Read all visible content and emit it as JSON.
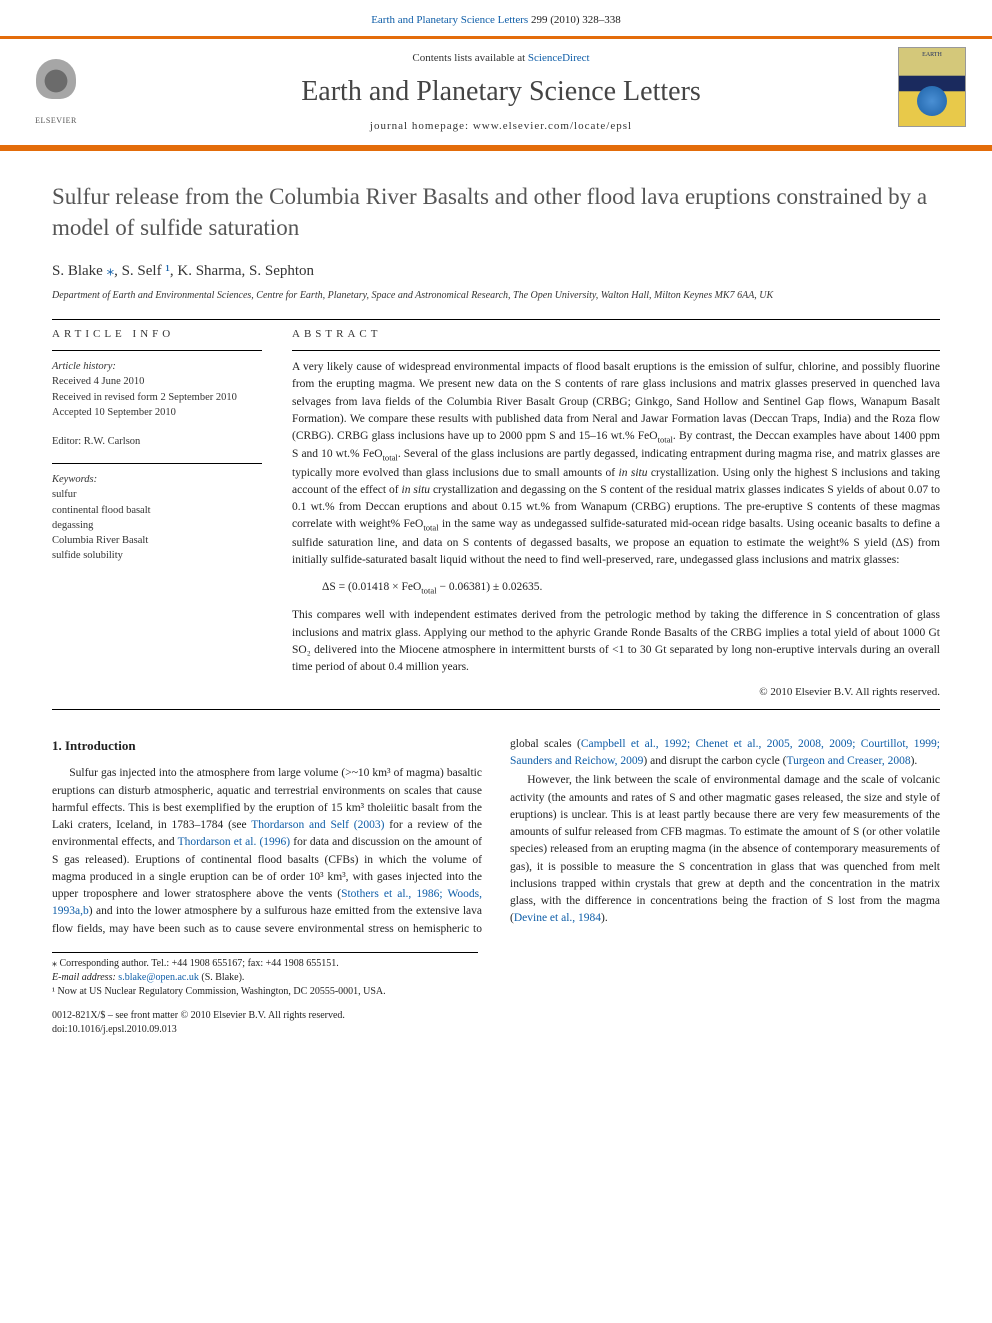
{
  "top_link": {
    "prefix": "",
    "journal": "Earth and Planetary Science Letters",
    "citation": " 299 (2010) 328–338"
  },
  "header": {
    "elsevier_label": "ELSEVIER",
    "contents_prefix": "Contents lists available at ",
    "contents_link": "ScienceDirect",
    "journal_title": "Earth and Planetary Science Letters",
    "homepage_prefix": "journal homepage: ",
    "homepage_url": "www.elsevier.com/locate/epsl",
    "cover_label": "EARTH"
  },
  "article": {
    "title": "Sulfur release from the Columbia River Basalts and other flood lava eruptions constrained by a model of sulfide saturation",
    "authors_html": "S. Blake ⁎, S. Self ¹, K. Sharma, S. Sephton",
    "affiliation": "Department of Earth and Environmental Sciences, Centre for Earth, Planetary, Space and Astronomical Research, The Open University, Walton Hall, Milton Keynes MK7 6AA, UK"
  },
  "info": {
    "head": "article info",
    "history_label": "Article history:",
    "received": "Received 4 June 2010",
    "revised": "Received in revised form 2 September 2010",
    "accepted": "Accepted 10 September 2010",
    "editor": "Editor: R.W. Carlson",
    "keywords_label": "Keywords:",
    "keywords": [
      "sulfur",
      "continental flood basalt",
      "degassing",
      "Columbia River Basalt",
      "sulfide solubility"
    ]
  },
  "abstract": {
    "head": "abstract",
    "p1": "A very likely cause of widespread environmental impacts of flood basalt eruptions is the emission of sulfur, chlorine, and possibly fluorine from the erupting magma. We present new data on the S contents of rare glass inclusions and matrix glasses preserved in quenched lava selvages from lava fields of the Columbia River Basalt Group (CRBG; Ginkgo, Sand Hollow and Sentinel Gap flows, Wanapum Basalt Formation). We compare these results with published data from Neral and Jawar Formation lavas (Deccan Traps, India) and the Roza flow (CRBG). CRBG glass inclusions have up to 2000 ppm S and 15–16 wt.% FeOtotal. By contrast, the Deccan examples have about 1400 ppm S and 10 wt.% FeOtotal. Several of the glass inclusions are partly degassed, indicating entrapment during magma rise, and matrix glasses are typically more evolved than glass inclusions due to small amounts of in situ crystallization. Using only the highest S inclusions and taking account of the effect of in situ crystallization and degassing on the S content of the residual matrix glasses indicates S yields of about 0.07 to 0.1 wt.% from Deccan eruptions and about 0.15 wt.% from Wanapum (CRBG) eruptions. The pre-eruptive S contents of these magmas correlate with weight% FeOtotal in the same way as undegassed sulfide-saturated mid-ocean ridge basalts. Using oceanic basalts to define a sulfide saturation line, and data on S contents of degassed basalts, we propose an equation to estimate the weight% S yield (ΔS) from initially sulfide-saturated basalt liquid without the need to find well-preserved, rare, undegassed glass inclusions and matrix glasses:",
    "equation": "ΔS = (0.01418 × FeOtotal − 0.06381) ± 0.02635.",
    "p2": "This compares well with independent estimates derived from the petrologic method by taking the difference in S concentration of glass inclusions and matrix glass. Applying our method to the aphyric Grande Ronde Basalts of the CRBG implies a total yield of about 1000 Gt SO₂ delivered into the Miocene atmosphere in intermittent bursts of <1 to 30 Gt separated by long non-eruptive intervals during an overall time period of about 0.4 million years.",
    "copyright": "© 2010 Elsevier B.V. All rights reserved."
  },
  "section1": {
    "heading": "1. Introduction",
    "para1_pre": "Sulfur gas injected into the atmosphere from large volume (>~10 km³ of magma) basaltic eruptions can disturb atmospheric, aquatic and terrestrial environments on scales that cause harmful effects. This is best exemplified by the eruption of 15 km³ tholeiitic basalt from the Laki craters, Iceland, in 1783–1784 (see ",
    "cite1": "Thordarson and Self (2003)",
    "para1_mid1": " for a review of the environmental effects, and ",
    "cite2": "Thordarson et al. (1996)",
    "para1_mid2": " for data and discussion on the amount of S gas released). Eruptions of continental flood basalts (CFBs) in which the volume of magma produced in a single eruption can be of order 10³ km³, with gases injected into the upper troposphere and lower stratosphere above the vents (",
    "cite3": "Stothers et al., 1986; Woods, 1993a,b",
    "para1_mid3": ") and into the lower atmosphere by a sulfurous haze emitted from the extensive lava flow fields, may have been such as to cause severe environmental stress on hemispheric to global scales (",
    "cite4": "Campbell et al., 1992; Chenet et al., 2005, 2008, 2009; Courtillot, 1999; Saunders and Reichow, 2009",
    "para1_mid4": ") and disrupt the carbon cycle (",
    "cite5": "Turgeon and Creaser, 2008",
    "para1_end": ").",
    "para2_pre": "However, the link between the scale of environmental damage and the scale of volcanic activity (the amounts and rates of S and other magmatic gases released, the size and style of eruptions) is unclear. This is at least partly because there are very few measurements of the amounts of sulfur released from CFB magmas. To estimate the amount of S (or other volatile species) released from an erupting magma (in the absence of contemporary measurements of gas), it is possible to measure the S concentration in glass that was quenched from melt inclusions trapped within crystals that grew at depth and the concentration in the matrix glass, with the difference in concentrations being the fraction of S lost from the magma (",
    "cite6": "Devine et al., 1984",
    "para2_end": ")."
  },
  "footnotes": {
    "corr": "⁎ Corresponding author. Tel.: +44 1908 655167; fax: +44 1908 655151.",
    "email_label": "E-mail address: ",
    "email": "s.blake@open.ac.uk",
    "email_suffix": " (S. Blake).",
    "note1": "¹ Now at US Nuclear Regulatory Commission, Washington, DC 20555-0001, USA."
  },
  "pubfooter": {
    "line1": "0012-821X/$ – see front matter © 2010 Elsevier B.V. All rights reserved.",
    "line2": "doi:10.1016/j.epsl.2010.09.013"
  },
  "colors": {
    "link": "#0f5ea8",
    "accent": "#e36c0a"
  }
}
